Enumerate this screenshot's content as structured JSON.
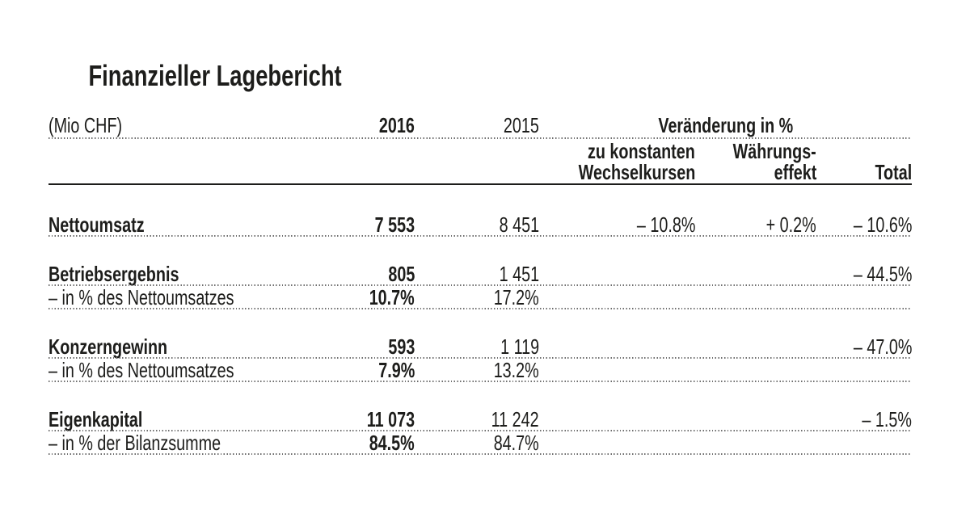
{
  "title": "Finanzieller Lagebericht",
  "table": {
    "unit_label": "(Mio CHF)",
    "header": {
      "year_current": "2016",
      "year_prior": "2015",
      "change_group": "Veränderung in %",
      "constant_fx_line1": "zu konstanten",
      "constant_fx_line2": "Wechselkursen",
      "currency_effect_line1": "Währungs-",
      "currency_effect_line2": "effekt",
      "total": "Total"
    },
    "rows": [
      {
        "label": "Nettoumsatz",
        "v2016": "7 553",
        "v2015": "8 451",
        "constant": "– 10.8%",
        "currency": "+ 0.2%",
        "total": "– 10.6%"
      },
      {
        "label": "Betriebsergebnis",
        "v2016": "805",
        "v2015": "1 451",
        "constant": "",
        "currency": "",
        "total": "– 44.5%"
      },
      {
        "label": "– in % des Nettoumsatzes",
        "v2016": "10.7%",
        "v2015": "17.2%",
        "constant": "",
        "currency": "",
        "total": ""
      },
      {
        "label": "Konzerngewinn",
        "v2016": "593",
        "v2015": "1 119",
        "constant": "",
        "currency": "",
        "total": "– 47.0%"
      },
      {
        "label": "– in % des Nettoumsatzes",
        "v2016": "7.9%",
        "v2015": "13.2%",
        "constant": "",
        "currency": "",
        "total": ""
      },
      {
        "label": "Eigenkapital",
        "v2016": "11 073",
        "v2015": "11 242",
        "constant": "",
        "currency": "",
        "total": "– 1.5%"
      },
      {
        "label": "– in % der Bilanzsumme",
        "v2016": "84.5%",
        "v2015": "84.7%",
        "constant": "",
        "currency": "",
        "total": ""
      }
    ]
  },
  "colors": {
    "text": "#1d1d1b",
    "dotted_line": "#6e6e6e",
    "rule": "#1d1d1b",
    "background": "#ffffff"
  }
}
